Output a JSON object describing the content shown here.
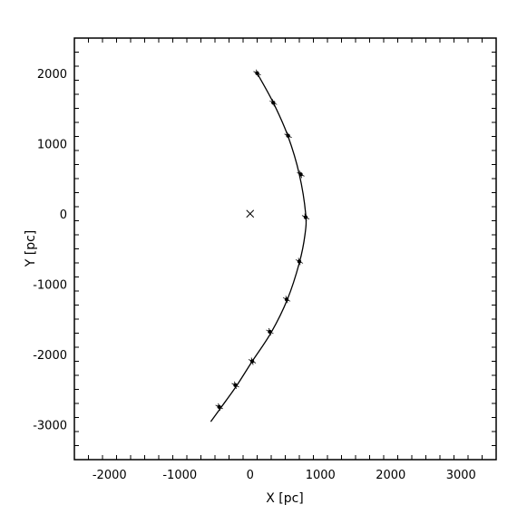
{
  "chart_data": {
    "type": "scatter",
    "title": "",
    "xlabel": "X  [pc]",
    "ylabel": "Y  [pc]",
    "xlim": [
      -2500,
      3500
    ],
    "ylim": [
      -3500,
      2500
    ],
    "x_major_ticks": [
      -2000,
      -1000,
      0,
      1000,
      2000,
      3000
    ],
    "y_major_ticks": [
      -3000,
      -2000,
      -1000,
      0,
      1000,
      2000
    ],
    "x_tick_labels": [
      "-2000",
      "-1000",
      "0",
      "1000",
      "2000",
      "3000"
    ],
    "y_tick_labels": [
      "-3000",
      "-2000",
      "-1000",
      "0",
      "1000",
      "2000"
    ],
    "x_minor_step": 200,
    "y_minor_step": 200,
    "grid": false,
    "legend": "none",
    "center_marker": {
      "x": 0,
      "y": 0,
      "symbol": "x"
    },
    "orbit_curve": [
      [
        100,
        2000
      ],
      [
        330,
        1580
      ],
      [
        540,
        1100
      ],
      [
        700,
        560
      ],
      [
        790,
        0
      ],
      [
        780,
        -300
      ],
      [
        700,
        -700
      ],
      [
        530,
        -1220
      ],
      [
        300,
        -1690
      ],
      [
        30,
        -2100
      ],
      [
        -200,
        -2460
      ],
      [
        -430,
        -2780
      ],
      [
        -560,
        -2960
      ]
    ],
    "points": [
      {
        "x": 100,
        "y": 2000
      },
      {
        "x": 330,
        "y": 1580
      },
      {
        "x": 540,
        "y": 1110
      },
      {
        "x": 720,
        "y": 560
      },
      {
        "x": 790,
        "y": -50
      },
      {
        "x": 700,
        "y": -680
      },
      {
        "x": 520,
        "y": -1220
      },
      {
        "x": 280,
        "y": -1680
      },
      {
        "x": 30,
        "y": -2100
      },
      {
        "x": -210,
        "y": -2440
      },
      {
        "x": -440,
        "y": -2750
      }
    ]
  }
}
